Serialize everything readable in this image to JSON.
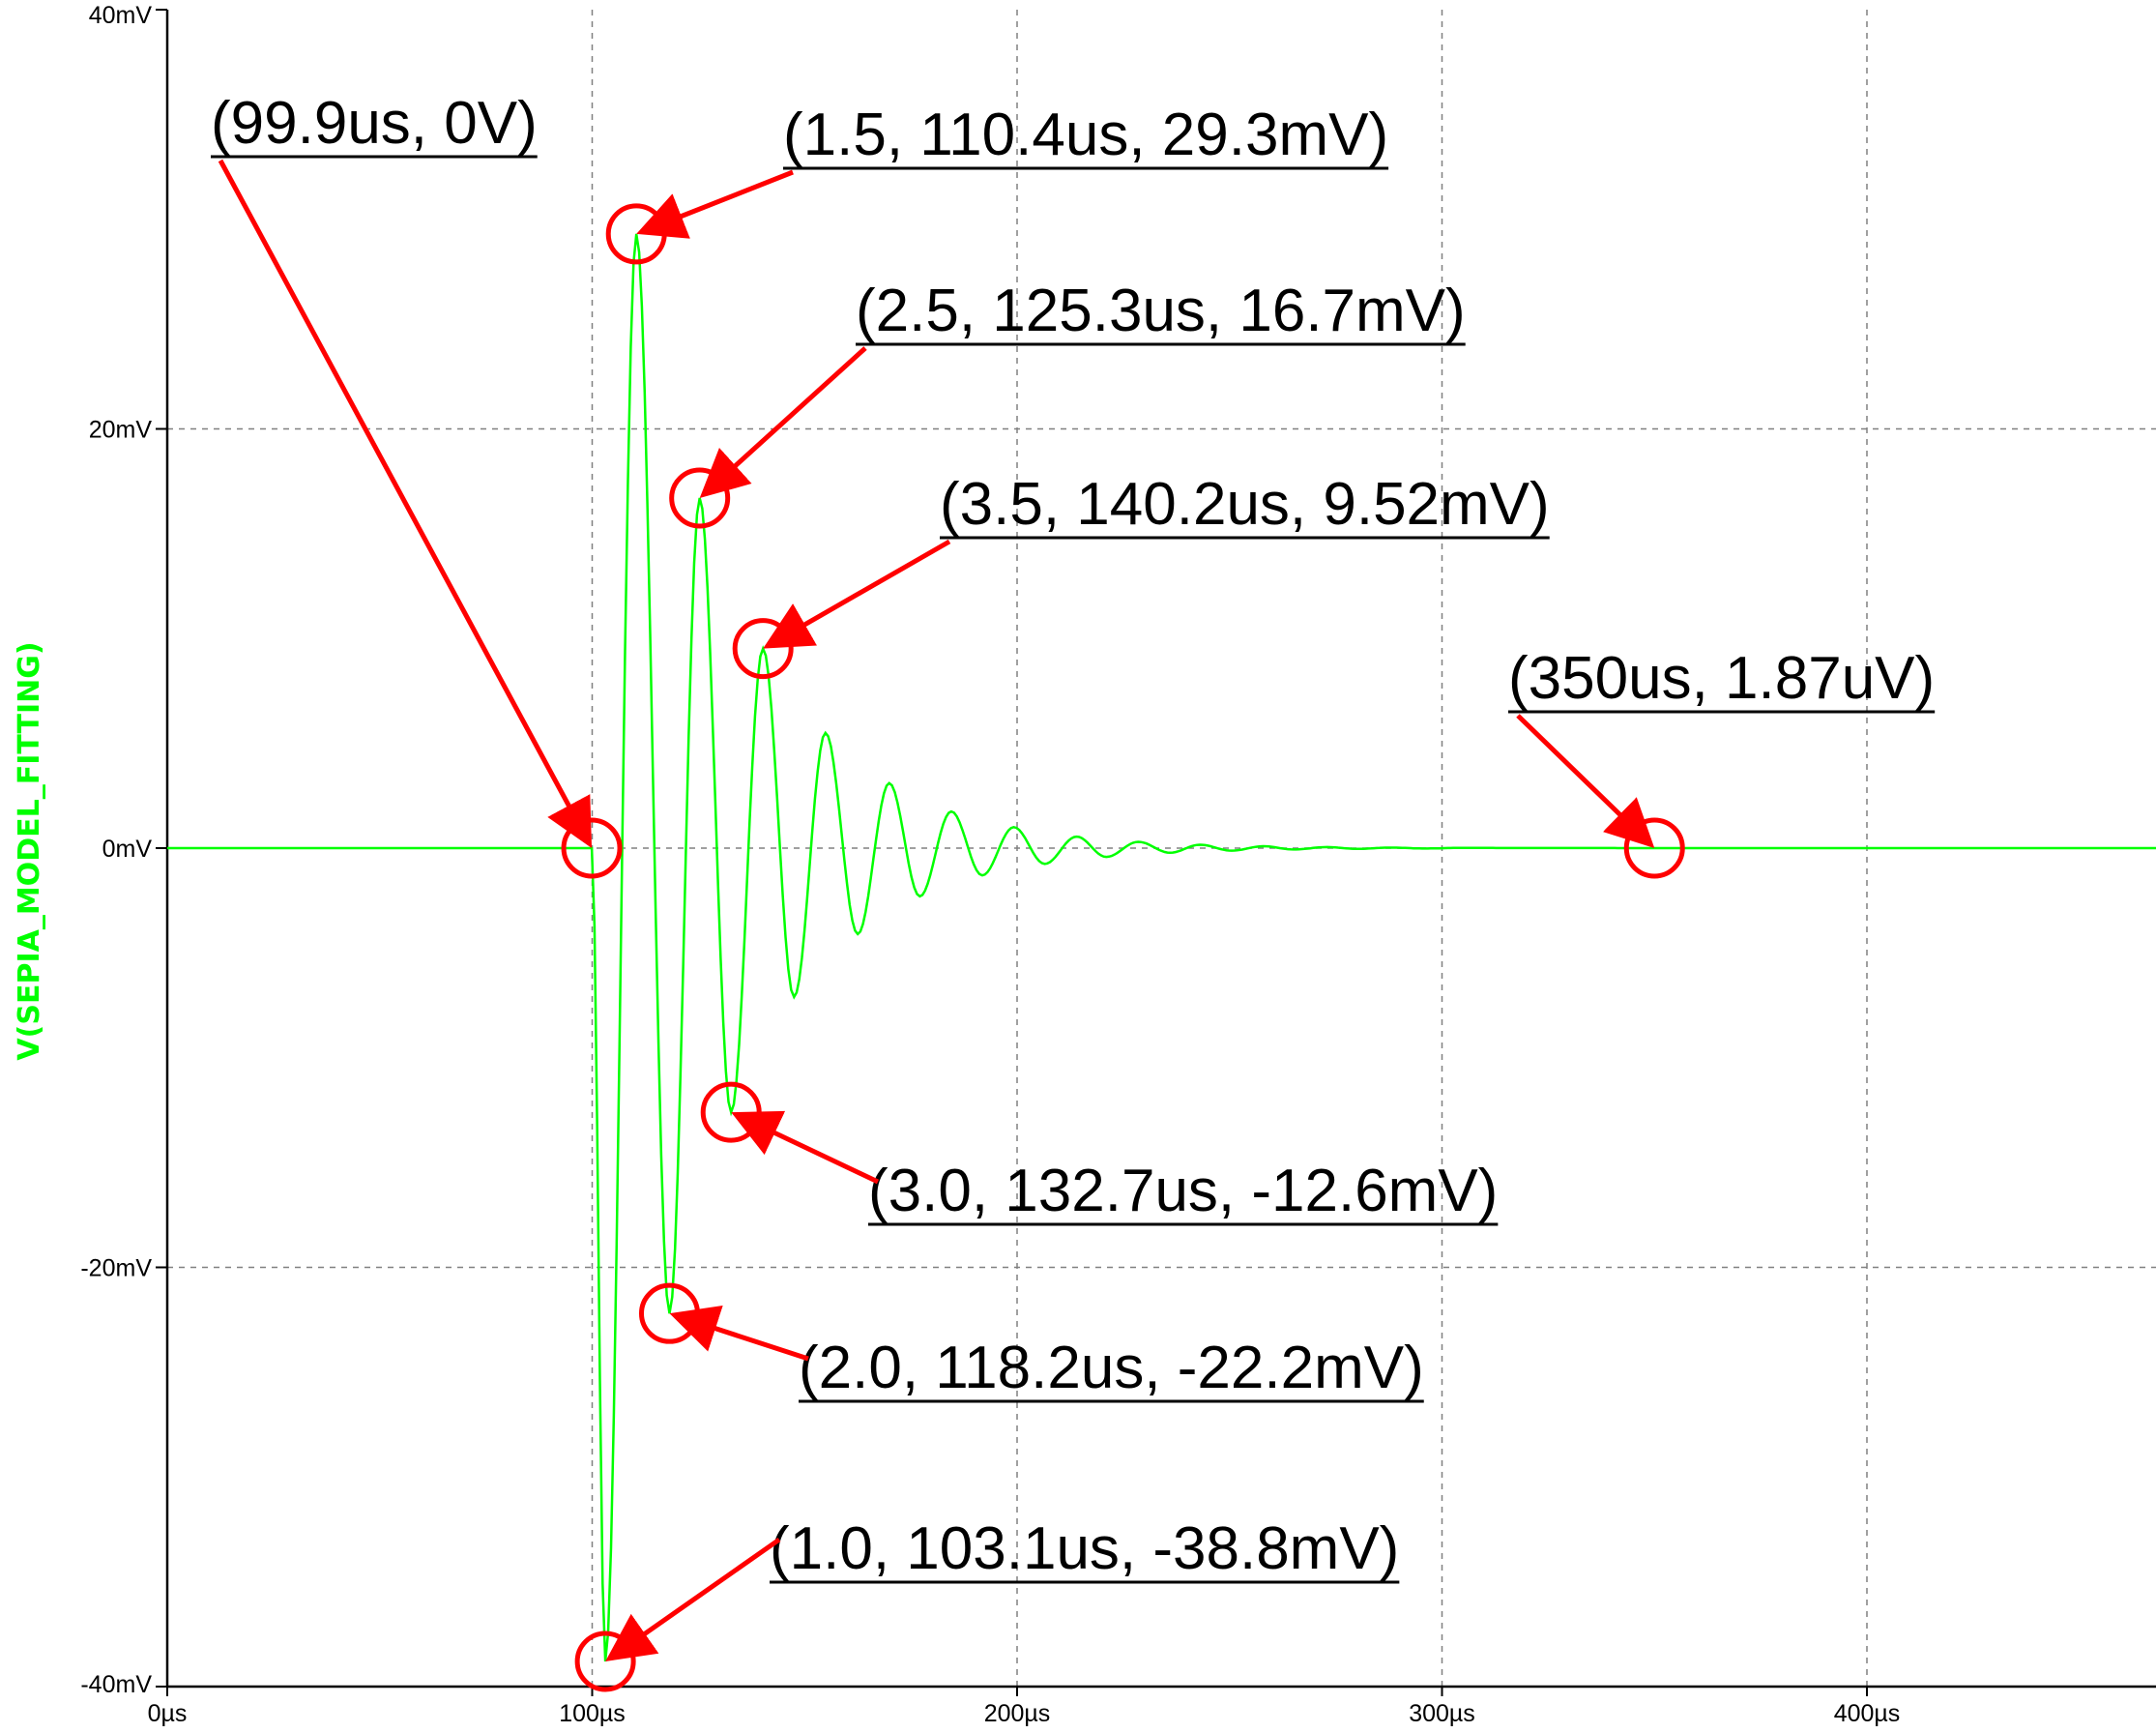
{
  "chart_data": {
    "type": "line",
    "title": "",
    "xlabel": "",
    "ylabel": "V(SEPIA_MODEL_FITTING)",
    "xlim": [
      0,
      470
    ],
    "ylim": [
      -40,
      40
    ],
    "grid": true,
    "x_unit": "µs",
    "y_unit": "mV",
    "x_ticks": [
      "0µs",
      "100µs",
      "200µs",
      "300µs",
      "400µs"
    ],
    "x_tick_values": [
      0,
      100,
      200,
      300,
      400
    ],
    "y_ticks": [
      "40mV",
      "20mV",
      "0mV",
      "-20mV",
      "-40mV"
    ],
    "y_tick_values": [
      40,
      20,
      0,
      -20,
      -40
    ],
    "colors": {
      "trace": "#00ff00",
      "annotation": "#ff0000",
      "grid": "#808080",
      "axis": "#000000"
    },
    "series": [
      {
        "name": "V(SEPIA_MODEL_FITTING)",
        "x": [
          0,
          99.9,
          103.1,
          110.4,
          118.2,
          125.3,
          132.7,
          140.2,
          147.5,
          154.9,
          162.5,
          169.9,
          177.1,
          184.5,
          191.8,
          199.2,
          206.5,
          214,
          221,
          228.5,
          236,
          243,
          250.5,
          258,
          265,
          273,
          280,
          288,
          296,
          304,
          320,
          350,
          400,
          470
        ],
        "y": [
          0,
          0,
          -38.8,
          29.3,
          -22.2,
          16.7,
          -12.6,
          9.52,
          -7.1,
          5.5,
          -4.1,
          3.1,
          -2.3,
          1.75,
          -1.3,
          1.0,
          -0.75,
          0.55,
          -0.42,
          0.3,
          -0.22,
          0.16,
          -0.12,
          0.09,
          -0.065,
          0.05,
          -0.035,
          0.025,
          -0.018,
          0.01,
          0.004,
          0.00187,
          0,
          0
        ]
      }
    ],
    "annotations": [
      {
        "label": "(99.9us, 0V)",
        "x": 99.9,
        "y": 0
      },
      {
        "label": "(1.5, 110.4us, 29.3mV)",
        "x": 110.4,
        "y": 29.3
      },
      {
        "label": "(2.5, 125.3us, 16.7mV)",
        "x": 125.3,
        "y": 16.7
      },
      {
        "label": "(3.5, 140.2us, 9.52mV)",
        "x": 140.2,
        "y": 9.52
      },
      {
        "label": "(350us, 1.87uV)",
        "x": 350,
        "y": 0.00187
      },
      {
        "label": "(3.0, 132.7us, -12.6mV)",
        "x": 132.7,
        "y": -12.6
      },
      {
        "label": "(2.0, 118.2us, -22.2mV)",
        "x": 118.2,
        "y": -22.2
      },
      {
        "label": "(1.0, 103.1us, -38.8mV)",
        "x": 103.1,
        "y": -38.8
      }
    ]
  }
}
